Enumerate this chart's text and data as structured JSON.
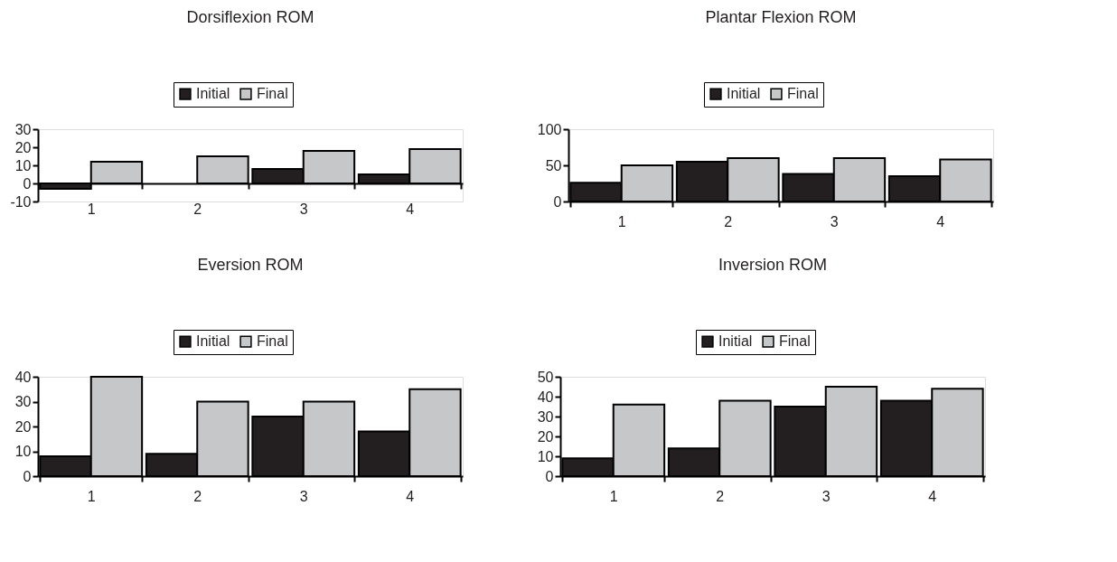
{
  "chart_data": [
    {
      "type": "bar",
      "title": "Dorsiflexion ROM",
      "categories": [
        "1",
        "2",
        "3",
        "4"
      ],
      "legend": "top",
      "ylim": [
        -10,
        30
      ],
      "yticks": [
        -10,
        0,
        10,
        20,
        30
      ],
      "series": [
        {
          "name": "Initial",
          "color": "#231f20",
          "values": [
            -3,
            0,
            8,
            5
          ]
        },
        {
          "name": "Final",
          "color": "#c6c7c8",
          "values": [
            12,
            15,
            18,
            19
          ]
        }
      ]
    },
    {
      "type": "bar",
      "title": "Plantar Flexion ROM",
      "categories": [
        "1",
        "2",
        "3",
        "4"
      ],
      "legend": "top",
      "ylim": [
        0,
        100
      ],
      "yticks": [
        0,
        50,
        100
      ],
      "series": [
        {
          "name": "Initial",
          "color": "#231f20",
          "values": [
            26,
            55,
            38,
            35
          ]
        },
        {
          "name": "Final",
          "color": "#c6c7c8",
          "values": [
            50,
            60,
            60,
            58
          ]
        }
      ]
    },
    {
      "type": "bar",
      "title": "Eversion  ROM",
      "categories": [
        "1",
        "2",
        "3",
        "4"
      ],
      "legend": "top",
      "ylim": [
        0,
        40
      ],
      "yticks": [
        0,
        10,
        20,
        30,
        40
      ],
      "series": [
        {
          "name": "Initial",
          "color": "#231f20",
          "values": [
            8,
            9,
            24,
            18
          ]
        },
        {
          "name": "Final",
          "color": "#c6c7c8",
          "values": [
            40,
            30,
            30,
            35
          ]
        }
      ]
    },
    {
      "type": "bar",
      "title": "Inversion ROM",
      "categories": [
        "1",
        "2",
        "3",
        "4"
      ],
      "legend": "top",
      "ylim": [
        0,
        50
      ],
      "yticks": [
        0,
        10,
        20,
        30,
        40,
        50
      ],
      "series": [
        {
          "name": "Initial",
          "color": "#231f20",
          "values": [
            9,
            14,
            35,
            38
          ]
        },
        {
          "name": "Final",
          "color": "#c6c7c8",
          "values": [
            36,
            38,
            45,
            44
          ]
        }
      ]
    }
  ]
}
